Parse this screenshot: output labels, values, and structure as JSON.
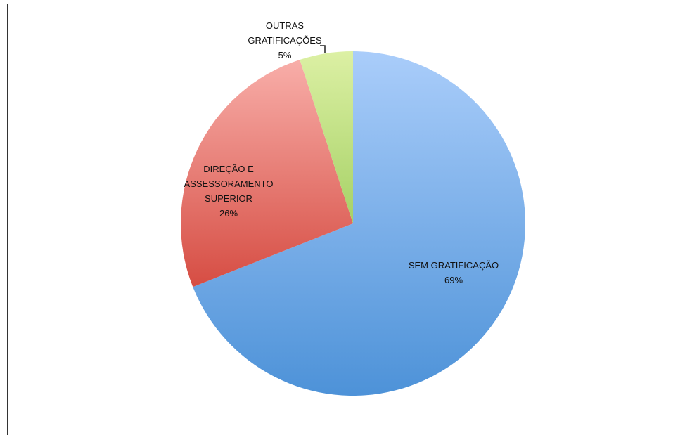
{
  "chart_data": {
    "type": "pie",
    "categories": [
      "SEM GRATIFICAÇÃO",
      "DIREÇÃO E ASSESSORAMENTO SUPERIOR",
      "OUTRAS GRATIFICAÇÕES"
    ],
    "values": [
      69,
      26,
      5
    ],
    "value_labels": [
      "69%",
      "26%",
      "5%"
    ],
    "colors": [
      [
        "#aacdfa",
        "#4d92d8"
      ],
      [
        "#f8aea9",
        "#d64d43"
      ],
      [
        "#dcf0a4",
        "#a6d166"
      ]
    ]
  }
}
